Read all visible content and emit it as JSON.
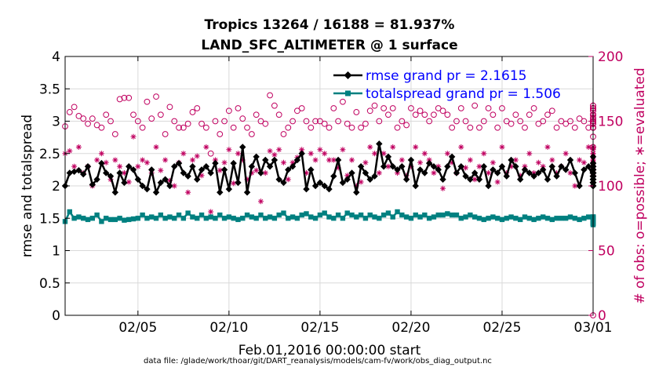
{
  "chart_data": {
    "type": "line",
    "title": [
      "Tropics 13264 / 16188 = 81.937%",
      "LAND_SFC_ALTIMETER @ 1 surface"
    ],
    "xlabel": "Feb.01,2016 00:00:00 start",
    "ylabel_left": "rmse and totalspread",
    "ylabel_right": "# of obs: o=possible; ∗=evaluated",
    "footer": "data file: /glade/work/thoar/git/DART_reanalysis/models/cam-fv/work/obs_diag_output.nc",
    "xlim": [
      1,
      30
    ],
    "ylim_left": [
      0,
      4
    ],
    "ylim_right": [
      0,
      200
    ],
    "x_ticks": [
      5,
      10,
      15,
      20,
      25,
      30
    ],
    "x_tick_labels": [
      "02/05",
      "02/10",
      "02/15",
      "02/20",
      "02/25",
      "03/01"
    ],
    "y_left_ticks": [
      "0",
      "0.5",
      "1",
      "1.5",
      "2",
      "2.5",
      "3",
      "3.5",
      "4"
    ],
    "y_right_ticks": [
      "0",
      "50",
      "100",
      "150",
      "200"
    ],
    "colors": {
      "rmse": "#000000",
      "totalspread": "#008080",
      "obs": "#c00060",
      "legend_text": "#0000ff",
      "grid": "#d9d9d9"
    },
    "rmse_start_x": 1.0,
    "totalspread_start_x": 1.0,
    "obs_start_x": 1.0,
    "step": 0.25,
    "series": [
      {
        "name": "rmse",
        "label": "rmse grand pr = 2.1615",
        "axis": "left",
        "values": [
          2.0,
          2.2,
          2.22,
          2.24,
          2.18,
          2.3,
          2.02,
          2.1,
          2.35,
          2.2,
          2.15,
          1.9,
          2.2,
          2.05,
          2.3,
          2.25,
          2.1,
          2.0,
          1.95,
          2.25,
          1.9,
          2.05,
          2.1,
          2.0,
          2.3,
          2.35,
          2.2,
          2.15,
          2.3,
          2.1,
          2.25,
          2.3,
          2.2,
          2.35,
          1.9,
          2.25,
          1.95,
          2.35,
          2.05,
          2.6,
          1.9,
          2.3,
          2.45,
          2.2,
          2.4,
          2.3,
          2.4,
          2.1,
          2.05,
          2.25,
          2.3,
          2.4,
          2.5,
          1.95,
          2.25,
          2.0,
          2.05,
          2.0,
          1.95,
          2.15,
          2.4,
          2.05,
          2.1,
          2.2,
          1.9,
          2.3,
          2.2,
          2.1,
          2.15,
          2.65,
          2.3,
          2.45,
          2.3,
          2.25,
          2.3,
          2.1,
          2.4,
          2.0,
          2.25,
          2.2,
          2.35,
          2.3,
          2.25,
          2.1,
          2.3,
          2.45,
          2.2,
          2.3,
          2.15,
          2.1,
          2.2,
          2.1,
          2.3,
          2.0,
          2.25,
          2.2,
          2.3,
          2.15,
          2.4,
          2.3,
          2.1,
          2.25,
          2.2,
          2.15,
          2.2,
          2.25,
          2.1,
          2.3,
          2.15,
          2.3,
          2.25,
          2.4,
          2.2,
          2.0,
          2.25,
          2.3,
          2.15,
          2.05,
          2.2,
          2.0,
          2.3,
          2.15,
          2.05,
          2.25,
          2.15,
          2.2,
          2.35,
          2.1,
          2.05,
          2.2,
          2.25,
          2.1,
          2.1,
          2.25,
          2.05,
          2.0,
          2.2,
          2.25,
          2.15,
          2.3,
          2.05,
          2.2,
          2.1,
          2.05,
          2.1,
          2.2,
          2.3,
          2.15,
          2.05,
          2.0,
          2.2,
          2.1,
          2.0,
          2.15,
          2.25,
          2.15,
          2.05,
          2.05,
          2.1,
          2.15,
          2.2,
          2.0,
          2.15,
          2.1,
          2.3,
          2.25,
          2.05,
          2.2,
          2.05,
          2.1,
          2.05,
          2.3,
          2.45,
          2.35,
          2.05,
          2.3,
          2.2,
          2.25,
          2.1,
          2.0,
          2.05,
          2.0,
          2.05,
          2.15,
          2.2,
          2.15,
          2.05
        ]
      },
      {
        "name": "totalspread",
        "label": "totalspread grand pr = 1.506",
        "axis": "left",
        "values": [
          1.45,
          1.6,
          1.5,
          1.52,
          1.5,
          1.48,
          1.5,
          1.55,
          1.45,
          1.5,
          1.48,
          1.48,
          1.5,
          1.47,
          1.48,
          1.49,
          1.5,
          1.55,
          1.5,
          1.52,
          1.5,
          1.55,
          1.5,
          1.52,
          1.5,
          1.55,
          1.5,
          1.58,
          1.52,
          1.5,
          1.55,
          1.5,
          1.52,
          1.5,
          1.55,
          1.5,
          1.52,
          1.5,
          1.48,
          1.5,
          1.55,
          1.52,
          1.5,
          1.55,
          1.5,
          1.52,
          1.5,
          1.55,
          1.58,
          1.5,
          1.52,
          1.5,
          1.55,
          1.57,
          1.52,
          1.5,
          1.55,
          1.58,
          1.52,
          1.5,
          1.55,
          1.5,
          1.58,
          1.55,
          1.52,
          1.55,
          1.5,
          1.55,
          1.52,
          1.5,
          1.55,
          1.58,
          1.52,
          1.6,
          1.55,
          1.52,
          1.5,
          1.55,
          1.52,
          1.55,
          1.5,
          1.52,
          1.55,
          1.55,
          1.57,
          1.55,
          1.55,
          1.5,
          1.52,
          1.55,
          1.52,
          1.5,
          1.48,
          1.5,
          1.52,
          1.5,
          1.48,
          1.5,
          1.52,
          1.5,
          1.48,
          1.52,
          1.5,
          1.48,
          1.5,
          1.52,
          1.5,
          1.48,
          1.5,
          1.5,
          1.5,
          1.52,
          1.5,
          1.48,
          1.5,
          1.52,
          1.5,
          1.48,
          1.5,
          1.5,
          1.52,
          1.5,
          1.5,
          1.48,
          1.5,
          1.47,
          1.5,
          1.5,
          1.48,
          1.5,
          1.47,
          1.5,
          1.5,
          1.48,
          1.5,
          1.47,
          1.5,
          1.5,
          1.48,
          1.5,
          1.5,
          1.47,
          1.5,
          1.48,
          1.5,
          1.5,
          1.48,
          1.5,
          1.52,
          1.5,
          1.48,
          1.5,
          1.47,
          1.5,
          1.48,
          1.5,
          1.52,
          1.5,
          1.48,
          1.5,
          1.52,
          1.5,
          1.48,
          1.5,
          1.42,
          1.48,
          1.5,
          1.45,
          1.48,
          1.5,
          1.47,
          1.48,
          1.5,
          1.5,
          1.45,
          1.48,
          1.5,
          1.47,
          1.45,
          1.48,
          1.47,
          1.45,
          1.44,
          1.42,
          1.42,
          1.4,
          1.42
        ]
      },
      {
        "name": "obs_possible",
        "label": "o=possible",
        "axis": "right",
        "marker": "o",
        "values": [
          146,
          157,
          161,
          154,
          152,
          148,
          152,
          147,
          145,
          155,
          150,
          140,
          167,
          168,
          168,
          155,
          150,
          145,
          165,
          152,
          169,
          155,
          140,
          161,
          150,
          145,
          145,
          148,
          157,
          160,
          148,
          145,
          125,
          150,
          140,
          150,
          158,
          145,
          160,
          152,
          145,
          140,
          155,
          150,
          148,
          170,
          162,
          155,
          140,
          145,
          150,
          158,
          160,
          150,
          145,
          150,
          150,
          148,
          145,
          160,
          150,
          165,
          148,
          145,
          157,
          145,
          148,
          158,
          162,
          150,
          160,
          155,
          160,
          145,
          150,
          147,
          160,
          155,
          158,
          155,
          150,
          155,
          160,
          158,
          155,
          145,
          150,
          160,
          150,
          145,
          162,
          145,
          150,
          160,
          155,
          145,
          160,
          150,
          148,
          155,
          150,
          145,
          155,
          160,
          148,
          150,
          155,
          158,
          145,
          150,
          148,
          150,
          145,
          152,
          150,
          145,
          152,
          150,
          145,
          150,
          148,
          145,
          150,
          160,
          152,
          150,
          145,
          155,
          158,
          150,
          148,
          155,
          160,
          150,
          148,
          155,
          150,
          158,
          160,
          148,
          152,
          150,
          155,
          160,
          150,
          148,
          145,
          150,
          155,
          162,
          150,
          160,
          155,
          150,
          148,
          145,
          150,
          162,
          158,
          155,
          152,
          150,
          148,
          145,
          150,
          160,
          150,
          155,
          155,
          152,
          148,
          145,
          150,
          150,
          153,
          155,
          155,
          150,
          145,
          148,
          152,
          155,
          152,
          150,
          138,
          130,
          150
        ]
      },
      {
        "name": "obs_evaluated",
        "label": "∗=evaluated",
        "axis": "right",
        "marker": "*",
        "values": [
          125,
          127,
          115,
          130,
          110,
          115,
          100,
          120,
          125,
          118,
          105,
          120,
          115,
          110,
          103,
          138,
          115,
          120,
          118,
          110,
          130,
          112,
          120,
          104,
          100,
          118,
          125,
          95,
          120,
          123,
          108,
          130,
          80,
          120,
          112,
          118,
          128,
          102,
          125,
          120,
          105,
          110,
          112,
          88,
          110,
          127,
          124,
          128,
          118,
          105,
          118,
          122,
          128,
          110,
          125,
          120,
          128,
          125,
          120,
          120,
          114,
          128,
          108,
          120,
          100,
          103,
          118,
          130,
          125,
          110,
          125,
          115,
          130,
          110,
          120,
          108,
          115,
          130,
          118,
          125,
          120,
          110,
          115,
          98,
          125,
          118,
          110,
          130,
          114,
          120,
          105,
          115,
          125,
          110,
          118,
          103,
          130,
          110,
          115,
          120,
          108,
          115,
          125,
          110,
          118,
          115,
          130,
          120,
          110,
          115,
          125,
          110,
          100,
          120,
          118,
          130,
          110,
          115,
          125,
          120,
          108,
          118,
          125,
          120,
          110,
          118,
          115,
          130,
          110,
          125,
          120,
          118,
          115,
          110,
          125,
          120,
          108,
          118,
          130,
          110,
          118,
          120,
          125,
          115,
          110,
          120,
          128,
          118,
          110,
          115,
          120,
          125,
          118,
          110,
          130,
          115,
          120,
          118,
          128,
          110,
          115,
          120,
          125,
          118,
          110,
          120,
          115,
          125,
          118,
          110,
          120,
          125,
          118,
          130,
          120,
          115,
          110,
          118,
          125,
          120,
          115,
          118,
          125,
          120,
          110,
          130,
          120
        ]
      }
    ]
  }
}
